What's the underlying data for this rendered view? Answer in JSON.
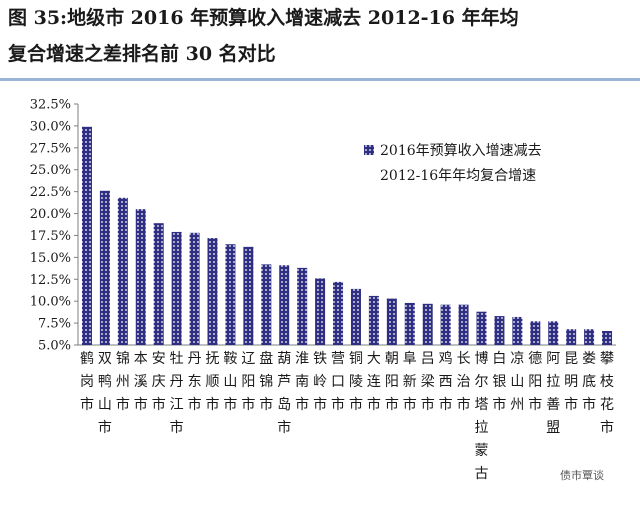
{
  "title_line1": "图 35:地级市 2016 年预算收入增速减去 2012-16 年年均",
  "title_line2": "复合增速之差排名前 30 名对比",
  "watermark": "债市覃谈",
  "chart_data": {
    "type": "bar",
    "ylim": [
      5.0,
      32.5
    ],
    "yticks": [
      "32.5%",
      "30.0%",
      "27.5%",
      "25.0%",
      "22.5%",
      "20.0%",
      "17.5%",
      "15.0%",
      "12.5%",
      "10.0%",
      "7.5%",
      "5.0%"
    ],
    "legend": {
      "line1": "2016年预算收入增速减去",
      "line2": "2012-16年年均复合增速"
    },
    "categories": [
      "鹤岗市",
      "双鸭山市",
      "锦州市",
      "本溪市",
      "安庆市",
      "牡丹江市",
      "丹东市",
      "抚顺市",
      "鞍山市",
      "辽阳市",
      "盘锦市",
      "葫芦岛市",
      "淮南市",
      "铁岭市",
      "营口市",
      "铜陵市",
      "大连市",
      "朝阳市",
      "阜新市",
      "吕梁市",
      "鸡西市",
      "长治市",
      "博尔塔拉蒙古",
      "白银市",
      "凉山州",
      "德阳市",
      "阿拉善盟",
      "昆明市",
      "娄底市",
      "攀枝花市"
    ],
    "values": [
      29.9,
      22.6,
      21.8,
      20.5,
      18.9,
      17.9,
      17.8,
      17.2,
      16.5,
      16.2,
      14.2,
      14.1,
      13.8,
      12.6,
      12.2,
      11.4,
      10.6,
      10.3,
      9.8,
      9.7,
      9.6,
      9.6,
      8.8,
      8.3,
      8.2,
      7.7,
      7.7,
      6.8,
      6.8,
      6.6
    ],
    "bar_color": "#2e2e82"
  }
}
